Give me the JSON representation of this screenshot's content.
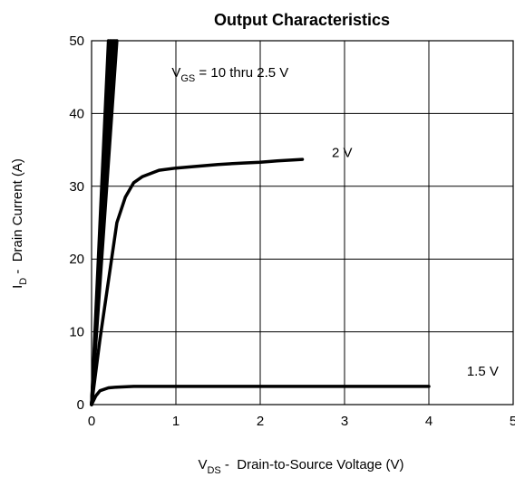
{
  "chart_data": {
    "type": "line",
    "title": "Output Characteristics",
    "xlabel": {
      "main": "V",
      "sub": "DS",
      "rest": " -  Drain-to-Source Voltage (V)"
    },
    "ylabel": {
      "main": "I",
      "sub": "D",
      "rest": " -  Drain Current (A)"
    },
    "xlim": [
      0,
      5
    ],
    "ylim": [
      0,
      50
    ],
    "xticks": [
      0,
      1,
      2,
      3,
      4,
      5
    ],
    "yticks": [
      0,
      10,
      20,
      30,
      40,
      50
    ],
    "grid": true,
    "series": [
      {
        "name": "V_GS = 10 thru 2.5 V",
        "label_parts": {
          "main": "V",
          "sub": "GS",
          "rest": " = 10 thru 2.5 V"
        },
        "points": [
          [
            0,
            0
          ],
          [
            0.3,
            50
          ]
        ]
      },
      {
        "points": [
          [
            0,
            0
          ],
          [
            0.28,
            50
          ]
        ]
      },
      {
        "points": [
          [
            0,
            0
          ],
          [
            0.26,
            50
          ]
        ]
      },
      {
        "points": [
          [
            0,
            0
          ],
          [
            0.24,
            50
          ]
        ]
      },
      {
        "points": [
          [
            0,
            0
          ],
          [
            0.22,
            50
          ]
        ]
      },
      {
        "points": [
          [
            0,
            0
          ],
          [
            0.2,
            50
          ]
        ]
      },
      {
        "name": "2 V",
        "points": [
          [
            0,
            0
          ],
          [
            0.1,
            9
          ],
          [
            0.2,
            17
          ],
          [
            0.3,
            25
          ],
          [
            0.4,
            28.5
          ],
          [
            0.5,
            30.5
          ],
          [
            0.6,
            31.3
          ],
          [
            0.8,
            32.2
          ],
          [
            1.0,
            32.5
          ],
          [
            1.2,
            32.7
          ],
          [
            1.5,
            33.0
          ],
          [
            1.8,
            33.2
          ],
          [
            2.0,
            33.3
          ],
          [
            2.2,
            33.5
          ],
          [
            2.5,
            33.7
          ]
        ]
      },
      {
        "name": "1.5 V",
        "points": [
          [
            0,
            0
          ],
          [
            0.05,
            1.2
          ],
          [
            0.1,
            1.9
          ],
          [
            0.2,
            2.3
          ],
          [
            0.3,
            2.4
          ],
          [
            0.5,
            2.5
          ],
          [
            1.0,
            2.5
          ],
          [
            2.0,
            2.5
          ],
          [
            3.0,
            2.5
          ],
          [
            4.0,
            2.5
          ]
        ]
      }
    ],
    "annotations": [
      {
        "series_ref": 0,
        "x": 0.95,
        "y": 45
      },
      {
        "series_ref": 6,
        "x": 2.85,
        "y": 34
      },
      {
        "series_ref": 7,
        "x": 4.45,
        "y": 4
      }
    ]
  }
}
